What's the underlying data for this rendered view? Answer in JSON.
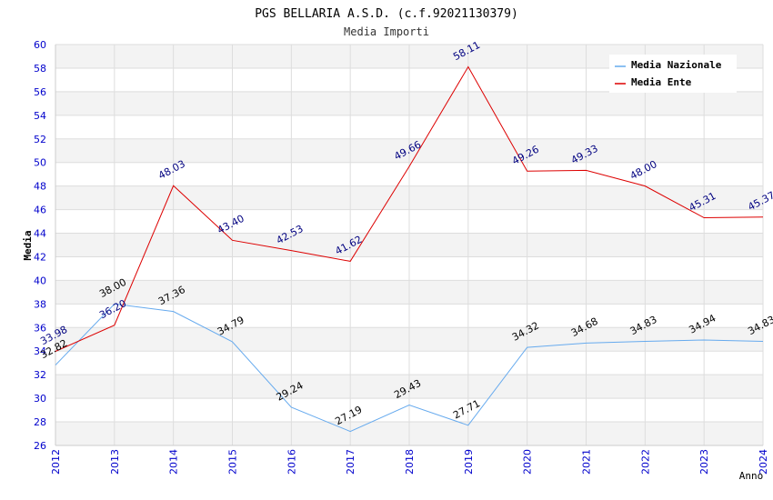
{
  "chart_data": {
    "type": "line",
    "title": "PGS BELLARIA A.S.D. (c.f.92021130379)",
    "subtitle": "Media Importi",
    "xlabel": "Anno",
    "ylabel": "Media",
    "ylim": [
      26,
      60
    ],
    "ytick_step": 2,
    "categories": [
      "2012",
      "2013",
      "2014",
      "2015",
      "2016",
      "2017",
      "2018",
      "2019",
      "2020",
      "2021",
      "2022",
      "2023",
      "2024"
    ],
    "series": [
      {
        "name": "Media Nazionale",
        "color": "#66aaee",
        "label_color": "#000000",
        "values": [
          32.82,
          38.0,
          37.36,
          34.79,
          29.24,
          27.19,
          29.43,
          27.71,
          34.32,
          34.68,
          34.83,
          34.94,
          34.83
        ],
        "labels": [
          "32.82",
          "38.00",
          "37.36",
          "34.79",
          "29.24",
          "27.19",
          "29.43",
          "27.71",
          "34.32",
          "34.68",
          "34.83",
          "34.94",
          "34.83"
        ]
      },
      {
        "name": "Media Ente",
        "color": "#dd0000",
        "label_color": "#000080",
        "values": [
          33.98,
          36.2,
          48.03,
          43.4,
          42.53,
          41.62,
          49.66,
          58.11,
          49.26,
          49.33,
          48.0,
          45.31,
          45.37
        ],
        "labels": [
          "33.98",
          "36.20",
          "48.03",
          "43.40",
          "42.53",
          "41.62",
          "49.66",
          "58.11",
          "49.26",
          "49.33",
          "48.00",
          "45.31",
          "45.37"
        ]
      }
    ],
    "legend_position": "top-right",
    "grid": true
  }
}
